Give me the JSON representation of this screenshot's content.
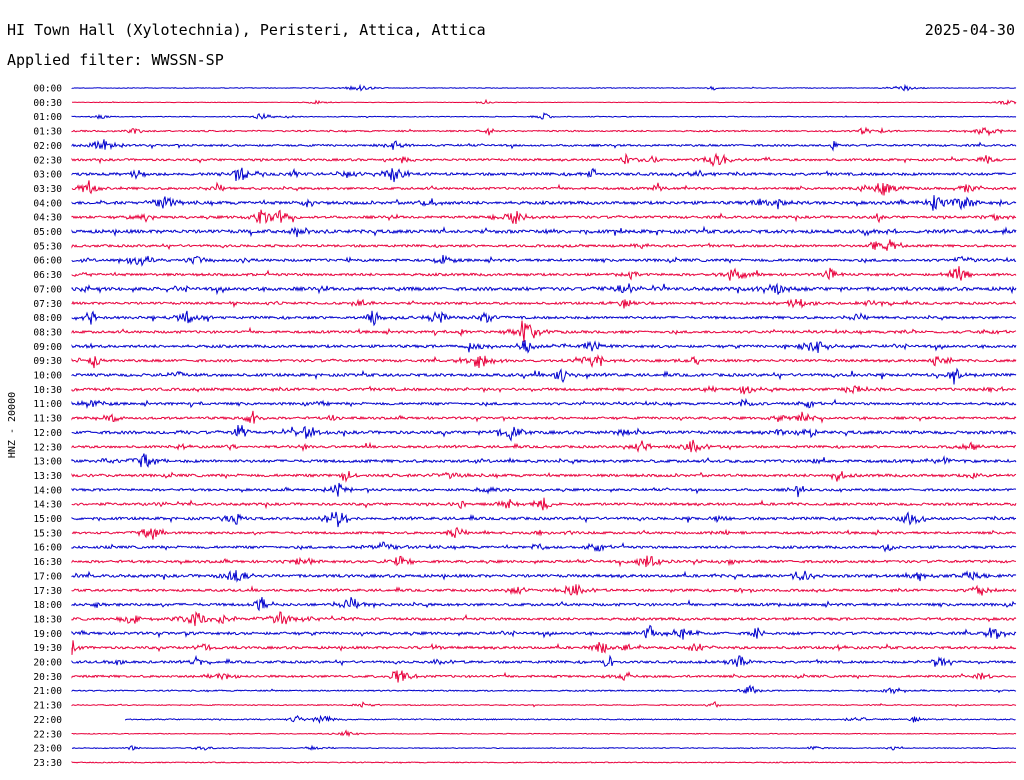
{
  "header": {
    "title": "HI Town Hall (Xylotechnia), Peristeri, Attica, Attica",
    "date": "2025-04-30",
    "filter": "Applied filter: WWSSN-SP"
  },
  "chart_data": {
    "type": "line",
    "title": "HI Town Hall (Xylotechnia), Peristeri, Attica, Attica",
    "ylabel": "HNZ - 20000",
    "row_labels": [
      "00:00",
      "00:30",
      "01:00",
      "01:30",
      "02:00",
      "02:30",
      "03:00",
      "03:30",
      "04:00",
      "04:30",
      "05:00",
      "05:30",
      "06:00",
      "06:30",
      "07:00",
      "07:30",
      "08:00",
      "08:30",
      "09:00",
      "09:30",
      "10:00",
      "10:30",
      "11:00",
      "11:30",
      "12:00",
      "12:30",
      "13:00",
      "13:30",
      "14:00",
      "14:30",
      "15:00",
      "15:30",
      "16:00",
      "16:30",
      "17:00",
      "17:30",
      "18:00",
      "18:30",
      "19:00",
      "19:30",
      "20:00",
      "20:30",
      "21:00",
      "21:30",
      "22:00",
      "22:30",
      "23:00",
      "23:30"
    ],
    "row_colors": [
      "#0000cc",
      "#e8003c"
    ],
    "row_noise": [
      0.4,
      0.3,
      0.5,
      0.9,
      1.2,
      1.3,
      1.6,
      1.4,
      1.8,
      1.5,
      2.0,
      1.4,
      1.6,
      1.5,
      2.0,
      1.4,
      1.5,
      1.5,
      1.6,
      1.5,
      1.7,
      1.6,
      1.5,
      1.4,
      1.8,
      1.4,
      1.7,
      1.6,
      1.4,
      1.5,
      1.6,
      1.4,
      1.5,
      1.5,
      1.7,
      1.4,
      1.6,
      1.5,
      1.6,
      1.5,
      1.4,
      1.3,
      0.8,
      0.6,
      0.7,
      0.5,
      0.5,
      0.6
    ],
    "gap": {
      "row": "22:00",
      "minutes": [
        0,
        1.7
      ]
    },
    "duration_minutes": 30
  }
}
